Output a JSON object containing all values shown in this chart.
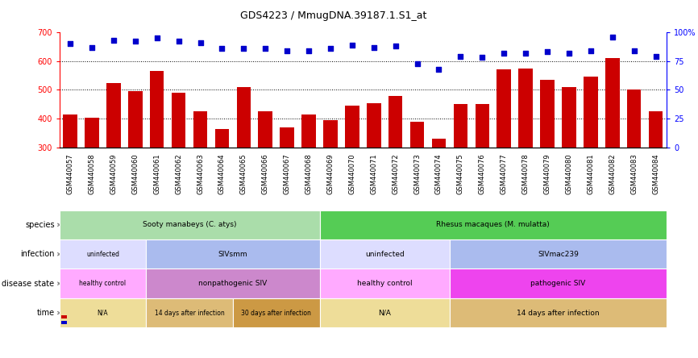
{
  "title": "GDS4223 / MmugDNA.39187.1.S1_at",
  "samples": [
    "GSM440057",
    "GSM440058",
    "GSM440059",
    "GSM440060",
    "GSM440061",
    "GSM440062",
    "GSM440063",
    "GSM440064",
    "GSM440065",
    "GSM440066",
    "GSM440067",
    "GSM440068",
    "GSM440069",
    "GSM440070",
    "GSM440071",
    "GSM440072",
    "GSM440073",
    "GSM440074",
    "GSM440075",
    "GSM440076",
    "GSM440077",
    "GSM440078",
    "GSM440079",
    "GSM440080",
    "GSM440081",
    "GSM440082",
    "GSM440083",
    "GSM440084"
  ],
  "counts": [
    415,
    403,
    525,
    495,
    565,
    490,
    425,
    365,
    510,
    425,
    370,
    415,
    395,
    445,
    455,
    480,
    390,
    330,
    450,
    450,
    570,
    575,
    535,
    510,
    545,
    610,
    500,
    425
  ],
  "percentile": [
    90,
    87,
    93,
    92,
    95,
    92,
    91,
    86,
    86,
    86,
    84,
    84,
    86,
    89,
    87,
    88,
    73,
    68,
    79,
    78,
    82,
    82,
    83,
    82,
    84,
    96,
    84,
    79
  ],
  "ylim_left": [
    300,
    700
  ],
  "ylim_right": [
    0,
    100
  ],
  "yticks_left": [
    300,
    400,
    500,
    600,
    700
  ],
  "yticks_right": [
    0,
    25,
    50,
    75,
    100
  ],
  "bar_color": "#cc0000",
  "dot_color": "#0000cc",
  "rows": [
    {
      "label": "species",
      "segments": [
        {
          "text": "Sooty manabeys (C. atys)",
          "start": 0,
          "end": 12,
          "color": "#aaddaa"
        },
        {
          "text": "Rhesus macaques (M. mulatta)",
          "start": 12,
          "end": 28,
          "color": "#55cc55"
        }
      ]
    },
    {
      "label": "infection",
      "segments": [
        {
          "text": "uninfected",
          "start": 0,
          "end": 4,
          "color": "#ddddff"
        },
        {
          "text": "SIVsmm",
          "start": 4,
          "end": 12,
          "color": "#aabbee"
        },
        {
          "text": "uninfected",
          "start": 12,
          "end": 18,
          "color": "#ddddff"
        },
        {
          "text": "SIVmac239",
          "start": 18,
          "end": 28,
          "color": "#aabbee"
        }
      ]
    },
    {
      "label": "disease state",
      "segments": [
        {
          "text": "healthy control",
          "start": 0,
          "end": 4,
          "color": "#ffaaff"
        },
        {
          "text": "nonpathogenic SIV",
          "start": 4,
          "end": 12,
          "color": "#cc88cc"
        },
        {
          "text": "healthy control",
          "start": 12,
          "end": 18,
          "color": "#ffaaff"
        },
        {
          "text": "pathogenic SIV",
          "start": 18,
          "end": 28,
          "color": "#ee44ee"
        }
      ]
    },
    {
      "label": "time",
      "segments": [
        {
          "text": "N/A",
          "start": 0,
          "end": 4,
          "color": "#eedd99"
        },
        {
          "text": "14 days after infection",
          "start": 4,
          "end": 8,
          "color": "#ddbb77"
        },
        {
          "text": "30 days after infection",
          "start": 8,
          "end": 12,
          "color": "#cc9944"
        },
        {
          "text": "N/A",
          "start": 12,
          "end": 18,
          "color": "#eedd99"
        },
        {
          "text": "14 days after infection",
          "start": 18,
          "end": 28,
          "color": "#ddbb77"
        }
      ]
    }
  ]
}
